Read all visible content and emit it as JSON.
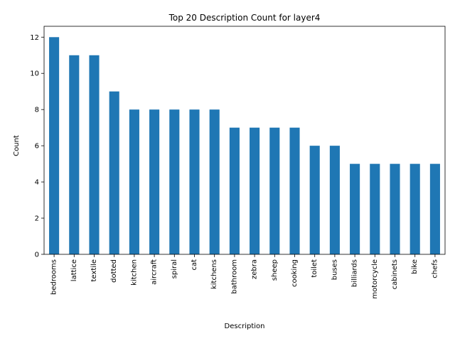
{
  "chart_data": {
    "type": "bar",
    "title": "Top 20 Description Count for layer4",
    "xlabel": "Description",
    "ylabel": "Count",
    "ylim": [
      0,
      12.6
    ],
    "yticks": [
      0,
      2,
      4,
      6,
      8,
      10,
      12
    ],
    "bar_color": "#1f77b4",
    "grid": false,
    "categories": [
      "bedrooms",
      "lattice",
      "textile",
      "dotted",
      "kitchen",
      "aircraft",
      "spiral",
      "cat",
      "kitchens",
      "bathroom",
      "zebra",
      "sheep",
      "cooking",
      "toilet",
      "buses",
      "billiards",
      "motorcycle",
      "cabinets",
      "bike",
      "chefs"
    ],
    "values": [
      12,
      11,
      11,
      9,
      8,
      8,
      8,
      8,
      8,
      7,
      7,
      7,
      7,
      6,
      6,
      5,
      5,
      5,
      5,
      5
    ]
  }
}
